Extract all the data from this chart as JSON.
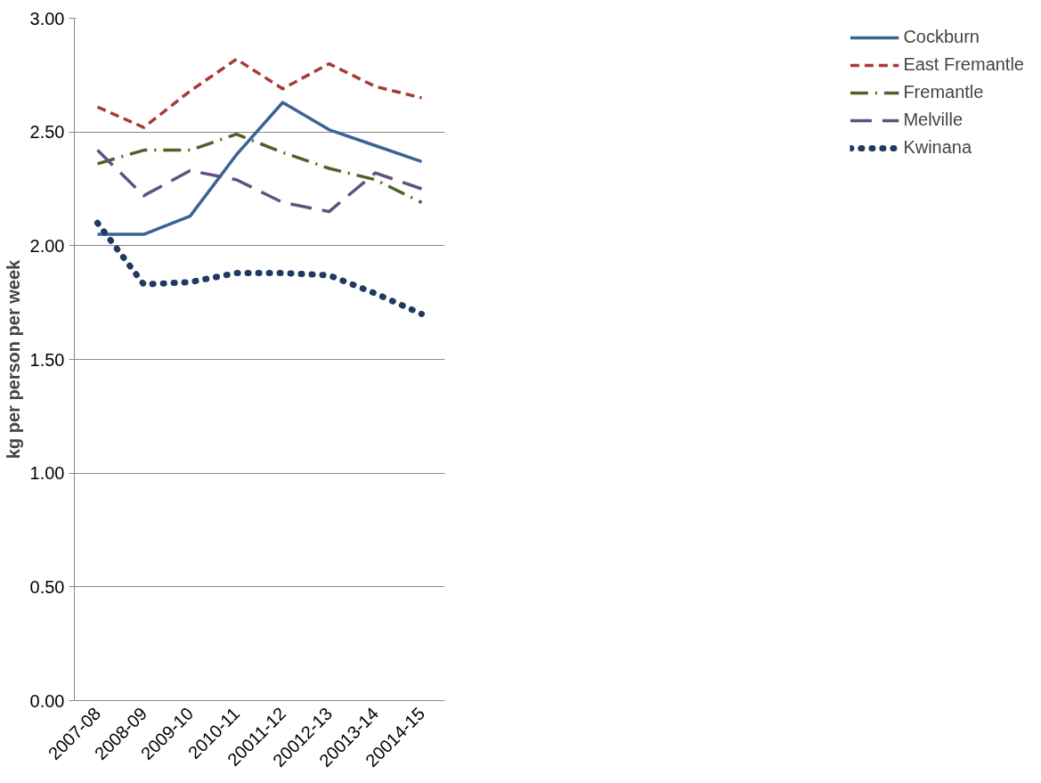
{
  "chart_data": {
    "type": "line",
    "ylabel": "kg per person per week",
    "categories": [
      "2007-08",
      "2008-09",
      "2009-10",
      "2010-11",
      "20011-12",
      "20012-13",
      "20013-14",
      "20014-15"
    ],
    "series": [
      {
        "name": "Cockburn",
        "color": "#3a6496",
        "line_style": "solid",
        "values": [
          2.05,
          2.05,
          2.13,
          2.4,
          2.63,
          2.51,
          2.44,
          2.37
        ]
      },
      {
        "name": "East Fremantle",
        "color": "#a83a36",
        "line_style": "dashed",
        "values": [
          2.61,
          2.52,
          2.68,
          2.82,
          2.69,
          2.8,
          2.7,
          2.65
        ]
      },
      {
        "name": "Fremantle",
        "color": "#4e6228",
        "line_style": "dashdot",
        "values": [
          2.36,
          2.42,
          2.42,
          2.49,
          2.41,
          2.34,
          2.29,
          2.19
        ]
      },
      {
        "name": "Melville",
        "color": "#64507f",
        "line_style": "longdash",
        "values": [
          2.42,
          2.22,
          2.33,
          2.29,
          2.19,
          2.15,
          2.32,
          2.25
        ]
      },
      {
        "name": "Kwinana",
        "color": "#1f3a5f",
        "line_style": "dotted",
        "values": [
          2.1,
          1.83,
          1.84,
          1.88,
          1.88,
          1.87,
          1.79,
          1.7
        ]
      }
    ],
    "ylim": [
      0,
      3
    ],
    "yticks": [
      {
        "value": 0,
        "label": "0.00"
      },
      {
        "value": 0.5,
        "label": "0.50"
      },
      {
        "value": 1,
        "label": "1.00"
      },
      {
        "value": 1.5,
        "label": "1.50"
      },
      {
        "value": 2,
        "label": "2.00"
      },
      {
        "value": 2.5,
        "label": "2.50"
      },
      {
        "value": 3,
        "label": "3.00"
      }
    ],
    "grid": "y",
    "legend": "right",
    "marker": "none"
  }
}
